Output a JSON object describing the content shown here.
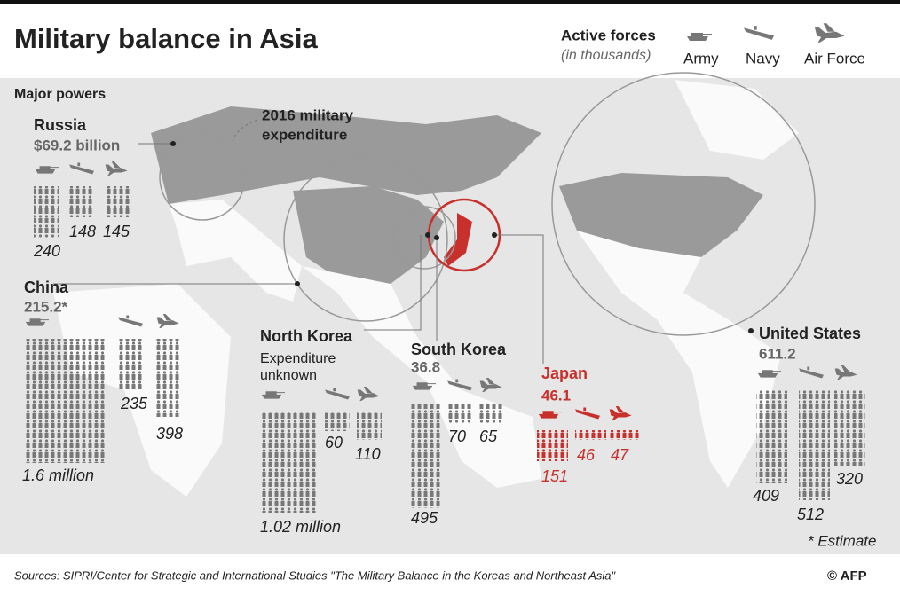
{
  "header": {
    "title": "Military balance in Asia",
    "legend_title": "Active forces",
    "legend_subtitle": "(in thousands)",
    "legend_items": [
      "Army",
      "Navy",
      "Air Force"
    ]
  },
  "section_label": "Major powers",
  "circle_note": [
    "2016 military",
    "expenditure"
  ],
  "countries": [
    {
      "name": "Russia",
      "expenditure": "$69.2 billion",
      "army": "240",
      "navy": "148",
      "air_force": "145"
    },
    {
      "name": "China",
      "expenditure": "215.2*",
      "army": "1.6 million",
      "navy": "235",
      "air_force": "398"
    },
    {
      "name": "North Korea",
      "expenditure": [
        "Expenditure",
        "unknown"
      ],
      "army": "1.02 million",
      "navy": "60",
      "air_force": "110"
    },
    {
      "name": "South Korea",
      "expenditure": "36.8",
      "army": "495",
      "navy": "70",
      "air_force": "65"
    },
    {
      "name": "Japan",
      "expenditure": "46.1",
      "army": "151",
      "navy": "46",
      "air_force": "47"
    },
    {
      "name": "United States",
      "expenditure": "611.2",
      "army": "409",
      "navy": "512",
      "air_force": "320"
    }
  ],
  "footnote": "* Estimate",
  "footer": {
    "sources": "Sources: SIPRI/Center for Strategic and International Studies \"The Military Balance in the Koreas and Northeast Asia\"",
    "credit": "© AFP"
  }
}
